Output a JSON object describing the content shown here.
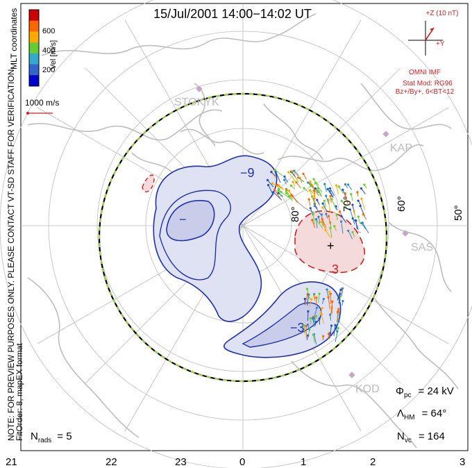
{
  "title": "15/Jul/2001 14:00−14:02 UT",
  "colorbar": {
    "label": "Vel [m/s]",
    "ticks": [
      "600",
      "400",
      "200"
    ],
    "colors": [
      "#cc0000",
      "#ff6600",
      "#ffaa00",
      "#66cc33",
      "#33aacc",
      "#3366cc",
      "#0000cc"
    ]
  },
  "coord_label": "MLT coordinates",
  "scale_vector_label": "1000 m/s",
  "stations": [
    "STOKYK",
    "KAP",
    "SAS",
    "KOD"
  ],
  "latitude_labels": [
    "80°",
    "70°",
    "60°",
    "50°"
  ],
  "contour_labels": {
    "neg": "−9",
    "neg_small": "−",
    "pos": "3",
    "neg2": "−3"
  },
  "imf": {
    "z_label": "+Z (10 nT)",
    "y_label": "+Y",
    "source": "OMNI IMF",
    "model": "Stat Mod: RG96",
    "condition": "Bz+/By+, 6<BT<12"
  },
  "notes": {
    "line1": "NOTE: FOR PREVIEW PURPOSES ONLY. PLEASE CONTACT VT-SD STAFF FOR VERIFICATION.",
    "line2": "FitOrder: 8, mapEX format"
  },
  "stats": {
    "nrads_sym": "N",
    "nrads_sub": "rads",
    "nrads_val": "= 5",
    "phi_sym": "Φ",
    "phi_sub": "pc",
    "phi_val": "= 24 kV",
    "lam_sym": "Λ",
    "lam_sub": "HM",
    "lam_val": "= 64°",
    "nvc_sym": "N",
    "nvc_sub": "vc",
    "nvc_val": "= 164"
  },
  "mlt_ticks": [
    "21",
    "22",
    "23",
    "0",
    "1",
    "2",
    "3"
  ]
}
